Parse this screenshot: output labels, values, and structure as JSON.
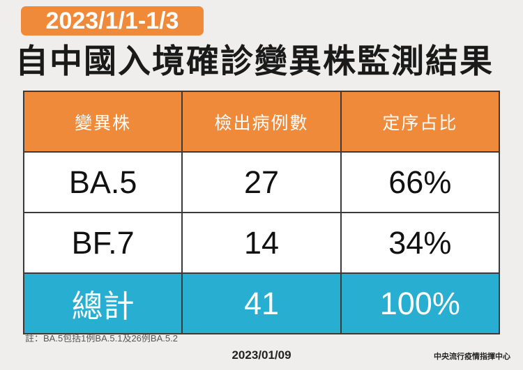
{
  "header": {
    "tag": "2023/1/1-1/3",
    "title": "自中國入境確診變異株監測結果"
  },
  "table": {
    "columns": [
      "變異株",
      "檢出病例數",
      "定序占比"
    ],
    "rows": [
      [
        "BA.5",
        "27",
        "66%"
      ],
      [
        "BF.7",
        "14",
        "34%"
      ]
    ],
    "total": [
      "總計",
      "41",
      "100%"
    ]
  },
  "note": "註：BA.5包括1例BA.5.1及26例BA.5.2",
  "date": "2023/01/09",
  "source": "中央流行疫情指揮中心"
}
